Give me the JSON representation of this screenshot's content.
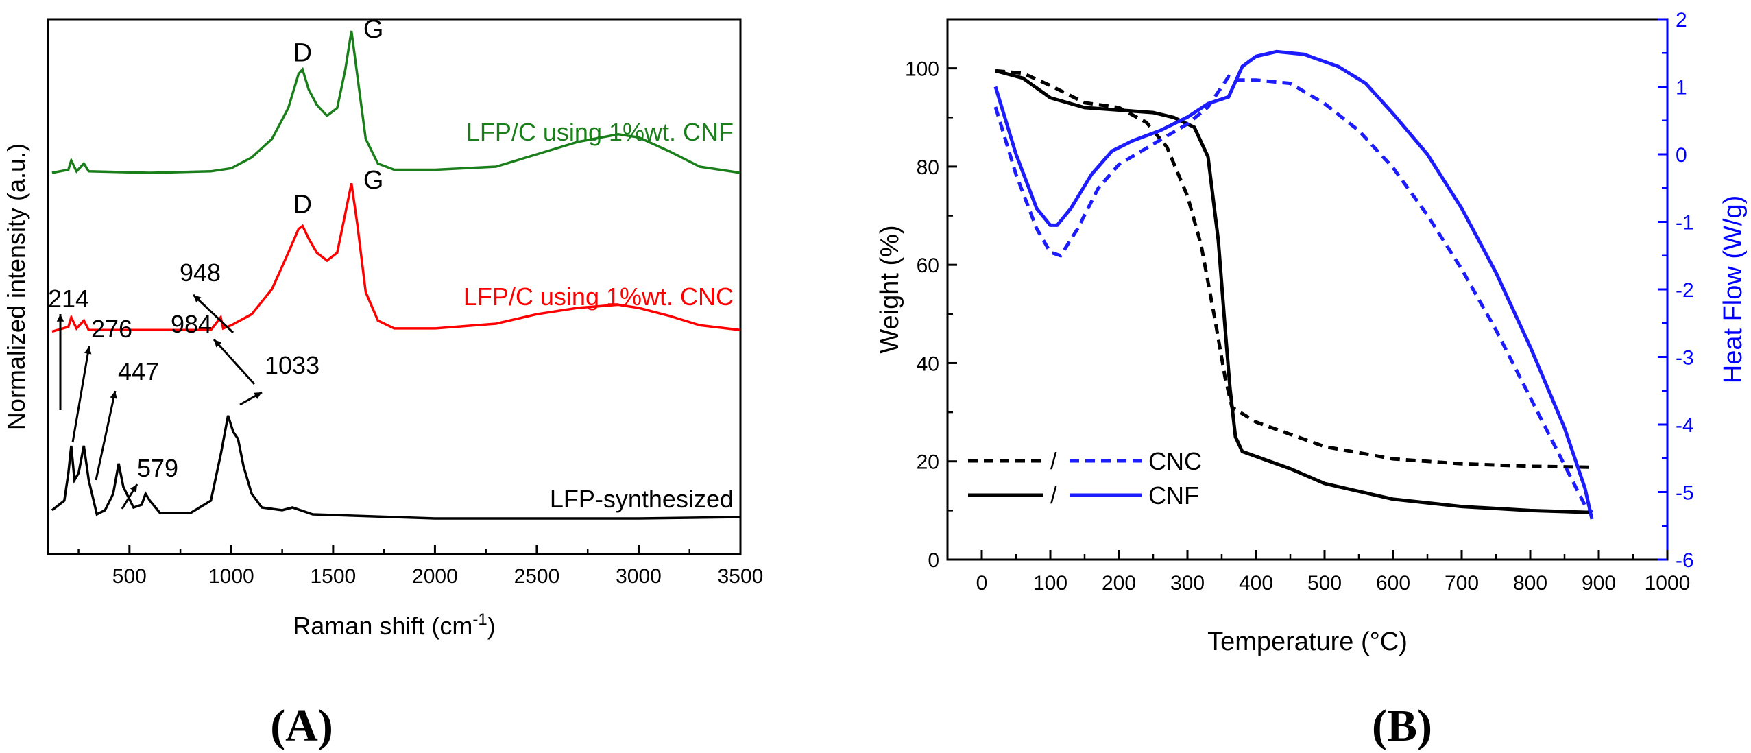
{
  "colors": {
    "black": "#000000",
    "green": "#1a7f1a",
    "red": "#ff0000",
    "blue": "#0000ff",
    "blue_line": "#1c1cff"
  },
  "chart_data": [
    {
      "type": "line",
      "panel_label": "(A)",
      "xlabel": "Raman shift (cm",
      "xlabel_sup": "-1",
      "xlabel_tail": ")",
      "ylabel": "Normalized intensity (a.u.)",
      "xlim": [
        100,
        3500
      ],
      "xticks": [
        500,
        1000,
        1500,
        2000,
        2500,
        3000,
        3500
      ],
      "yticks_shown": false,
      "series": [
        {
          "name": "LFP/C  using 1%wt. CNF",
          "color": "green",
          "offset": 2.0,
          "points": [
            [
              120,
              0.08
            ],
            [
              200,
              0.1
            ],
            [
              214,
              0.16
            ],
            [
              240,
              0.09
            ],
            [
              276,
              0.14
            ],
            [
              300,
              0.09
            ],
            [
              600,
              0.08
            ],
            [
              900,
              0.09
            ],
            [
              1000,
              0.11
            ],
            [
              1100,
              0.18
            ],
            [
              1200,
              0.3
            ],
            [
              1280,
              0.5
            ],
            [
              1330,
              0.72
            ],
            [
              1350,
              0.75
            ],
            [
              1380,
              0.62
            ],
            [
              1420,
              0.52
            ],
            [
              1470,
              0.45
            ],
            [
              1520,
              0.5
            ],
            [
              1560,
              0.75
            ],
            [
              1590,
              1.0
            ],
            [
              1620,
              0.7
            ],
            [
              1660,
              0.3
            ],
            [
              1720,
              0.14
            ],
            [
              1800,
              0.1
            ],
            [
              2000,
              0.1
            ],
            [
              2300,
              0.12
            ],
            [
              2500,
              0.2
            ],
            [
              2700,
              0.28
            ],
            [
              2900,
              0.33
            ],
            [
              3000,
              0.31
            ],
            [
              3150,
              0.22
            ],
            [
              3300,
              0.12
            ],
            [
              3500,
              0.08
            ]
          ],
          "peak_labels": [
            {
              "x": 1350,
              "text": "D"
            },
            {
              "x": 1590,
              "text": "G"
            }
          ]
        },
        {
          "name": "LFP/C  using 1%wt. CNC",
          "color": "red",
          "offset": 1.0,
          "points": [
            [
              120,
              0.05
            ],
            [
              200,
              0.08
            ],
            [
              214,
              0.14
            ],
            [
              240,
              0.07
            ],
            [
              276,
              0.12
            ],
            [
              300,
              0.06
            ],
            [
              600,
              0.06
            ],
            [
              900,
              0.06
            ],
            [
              948,
              0.14
            ],
            [
              960,
              0.07
            ],
            [
              1000,
              0.09
            ],
            [
              1100,
              0.16
            ],
            [
              1200,
              0.32
            ],
            [
              1280,
              0.55
            ],
            [
              1330,
              0.7
            ],
            [
              1350,
              0.72
            ],
            [
              1380,
              0.64
            ],
            [
              1420,
              0.55
            ],
            [
              1470,
              0.5
            ],
            [
              1520,
              0.55
            ],
            [
              1560,
              0.8
            ],
            [
              1590,
              0.99
            ],
            [
              1620,
              0.72
            ],
            [
              1660,
              0.3
            ],
            [
              1720,
              0.12
            ],
            [
              1800,
              0.07
            ],
            [
              2000,
              0.07
            ],
            [
              2300,
              0.1
            ],
            [
              2500,
              0.16
            ],
            [
              2700,
              0.2
            ],
            [
              2900,
              0.22
            ],
            [
              3000,
              0.2
            ],
            [
              3150,
              0.15
            ],
            [
              3300,
              0.09
            ],
            [
              3500,
              0.06
            ]
          ],
          "peak_labels": [
            {
              "x": 1350,
              "text": "D"
            },
            {
              "x": 1590,
              "text": "G"
            }
          ],
          "annotations": [
            {
              "x": 948,
              "text": "948"
            }
          ]
        },
        {
          "name": "LFP-synthesized",
          "color": "black",
          "offset": 0.0,
          "points": [
            [
              120,
              0.08
            ],
            [
              180,
              0.15
            ],
            [
              200,
              0.35
            ],
            [
              214,
              0.55
            ],
            [
              230,
              0.3
            ],
            [
              250,
              0.35
            ],
            [
              276,
              0.55
            ],
            [
              300,
              0.3
            ],
            [
              340,
              0.05
            ],
            [
              380,
              0.08
            ],
            [
              420,
              0.2
            ],
            [
              447,
              0.42
            ],
            [
              470,
              0.25
            ],
            [
              520,
              0.1
            ],
            [
              560,
              0.12
            ],
            [
              579,
              0.2
            ],
            [
              600,
              0.15
            ],
            [
              650,
              0.06
            ],
            [
              800,
              0.06
            ],
            [
              900,
              0.15
            ],
            [
              950,
              0.5
            ],
            [
              984,
              0.77
            ],
            [
              1010,
              0.65
            ],
            [
              1033,
              0.6
            ],
            [
              1060,
              0.4
            ],
            [
              1100,
              0.2
            ],
            [
              1150,
              0.1
            ],
            [
              1250,
              0.08
            ],
            [
              1300,
              0.1
            ],
            [
              1400,
              0.05
            ],
            [
              2000,
              0.02
            ],
            [
              2500,
              0.02
            ],
            [
              3000,
              0.02
            ],
            [
              3500,
              0.03
            ]
          ],
          "annotations": [
            {
              "x": 214,
              "text": "214"
            },
            {
              "x": 276,
              "text": "276"
            },
            {
              "x": 447,
              "text": "447"
            },
            {
              "x": 579,
              "text": "579"
            },
            {
              "x": 984,
              "text": "984"
            },
            {
              "x": 1033,
              "text": "1033"
            }
          ]
        }
      ]
    },
    {
      "type": "line",
      "panel_label": "(B)",
      "xlabel": "Temperature (°C)",
      "ylabel_left": "Weight (%)",
      "ylabel_right": "Heat Flow (W/g)",
      "xlim": [
        -50,
        1000
      ],
      "ylim_left": [
        0,
        110
      ],
      "ylim_right": [
        -6,
        2
      ],
      "xticks": [
        0,
        100,
        200,
        300,
        400,
        500,
        600,
        700,
        800,
        900,
        1000
      ],
      "yticks_left": [
        0,
        20,
        40,
        60,
        80,
        100
      ],
      "yticks_right": [
        -6,
        -5,
        -4,
        -3,
        -2,
        -1,
        0,
        1,
        2
      ],
      "legend": {
        "position": "lower-left",
        "separator": "/",
        "entries": [
          {
            "label": "CNC",
            "style": "dashed"
          },
          {
            "label": "CNF",
            "style": "solid"
          }
        ]
      },
      "series": [
        {
          "name": "CNC",
          "axis": "left",
          "color": "black",
          "style": "dashed",
          "points": [
            [
              20,
              99.5
            ],
            [
              60,
              99
            ],
            [
              100,
              96.5
            ],
            [
              150,
              93
            ],
            [
              200,
              92
            ],
            [
              240,
              89
            ],
            [
              270,
              84
            ],
            [
              300,
              74
            ],
            [
              320,
              64
            ],
            [
              340,
              49
            ],
            [
              355,
              37
            ],
            [
              365,
              31
            ],
            [
              400,
              28
            ],
            [
              500,
              23
            ],
            [
              600,
              20.5
            ],
            [
              700,
              19.5
            ],
            [
              800,
              19
            ],
            [
              890,
              18.8
            ]
          ]
        },
        {
          "name": "CNF",
          "axis": "left",
          "color": "black",
          "style": "solid",
          "points": [
            [
              20,
              99.5
            ],
            [
              60,
              98
            ],
            [
              100,
              94
            ],
            [
              150,
              92
            ],
            [
              200,
              91.5
            ],
            [
              250,
              91
            ],
            [
              280,
              90
            ],
            [
              310,
              88
            ],
            [
              330,
              82
            ],
            [
              345,
              65
            ],
            [
              355,
              47
            ],
            [
              362,
              35
            ],
            [
              370,
              25
            ],
            [
              380,
              22
            ],
            [
              450,
              18.5
            ],
            [
              500,
              15.5
            ],
            [
              600,
              12.3
            ],
            [
              700,
              10.8
            ],
            [
              800,
              10
            ],
            [
              890,
              9.6
            ]
          ]
        },
        {
          "name": "CNC",
          "axis": "right",
          "color": "blue",
          "style": "dashed",
          "points": [
            [
              20,
              0.7
            ],
            [
              50,
              -0.3
            ],
            [
              80,
              -1.1
            ],
            [
              100,
              -1.45
            ],
            [
              115,
              -1.5
            ],
            [
              140,
              -1.1
            ],
            [
              170,
              -0.5
            ],
            [
              200,
              -0.15
            ],
            [
              250,
              0.15
            ],
            [
              300,
              0.45
            ],
            [
              330,
              0.7
            ],
            [
              350,
              1.0
            ],
            [
              360,
              1.15
            ],
            [
              370,
              1.1
            ],
            [
              400,
              1.1
            ],
            [
              450,
              1.05
            ],
            [
              500,
              0.75
            ],
            [
              550,
              0.35
            ],
            [
              600,
              -0.2
            ],
            [
              650,
              -0.9
            ],
            [
              700,
              -1.7
            ],
            [
              750,
              -2.6
            ],
            [
              800,
              -3.6
            ],
            [
              850,
              -4.6
            ],
            [
              880,
              -5.2
            ],
            [
              890,
              -5.3
            ]
          ]
        },
        {
          "name": "CNF",
          "axis": "right",
          "color": "blue",
          "style": "solid",
          "points": [
            [
              20,
              1.0
            ],
            [
              50,
              0.0
            ],
            [
              80,
              -0.8
            ],
            [
              100,
              -1.05
            ],
            [
              110,
              -1.05
            ],
            [
              130,
              -0.8
            ],
            [
              160,
              -0.3
            ],
            [
              190,
              0.05
            ],
            [
              220,
              0.2
            ],
            [
              260,
              0.35
            ],
            [
              300,
              0.55
            ],
            [
              330,
              0.75
            ],
            [
              360,
              0.85
            ],
            [
              380,
              1.3
            ],
            [
              400,
              1.45
            ],
            [
              430,
              1.52
            ],
            [
              470,
              1.48
            ],
            [
              520,
              1.3
            ],
            [
              560,
              1.05
            ],
            [
              600,
              0.6
            ],
            [
              650,
              0.0
            ],
            [
              700,
              -0.8
            ],
            [
              750,
              -1.75
            ],
            [
              800,
              -2.85
            ],
            [
              850,
              -4.05
            ],
            [
              880,
              -4.95
            ],
            [
              890,
              -5.4
            ]
          ]
        }
      ]
    }
  ]
}
